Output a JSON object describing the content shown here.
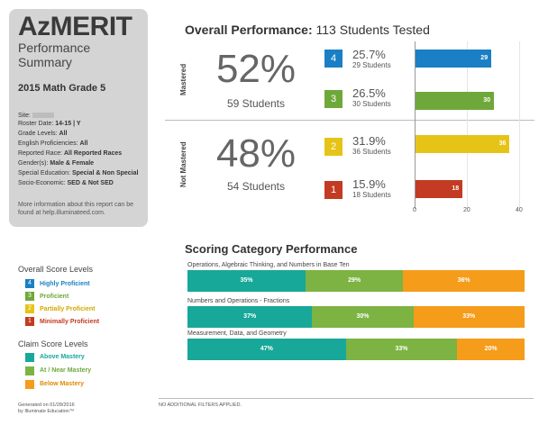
{
  "summary": {
    "brand": "AzMERIT",
    "subtitle": "Performance Summary",
    "grade": "2015 Math Grade 5",
    "filters": [
      {
        "label": "Site:",
        "value": ""
      },
      {
        "label": "Roster Date:",
        "value": "14-15 | Y"
      },
      {
        "label": "Grade Levels:",
        "value": "All"
      },
      {
        "label": "English Proficiencies:",
        "value": "All"
      },
      {
        "label": "Reported Race:",
        "value": "All Reported Races"
      },
      {
        "label": "Gender(s):",
        "value": "Male & Female"
      },
      {
        "label": "Special Education:",
        "value": "Special & Non Special"
      },
      {
        "label": "Socio-Economic:",
        "value": "SED & Not SED"
      }
    ],
    "more_info": "More information about this report can be found at help.illuminateed.com."
  },
  "overall": {
    "title_bold": "Overall Performance:",
    "title_rest": "113 Students Tested",
    "groups": [
      {
        "label": "Mastered",
        "percent": "52%",
        "students": "59 Students"
      },
      {
        "label": "Not Mastered",
        "percent": "48%",
        "students": "54 Students"
      }
    ],
    "levels": [
      {
        "badge": "4",
        "percent": "25.7%",
        "students": "29 Students",
        "count": 29,
        "color": "#1a7fc4"
      },
      {
        "badge": "3",
        "percent": "26.5%",
        "students": "30 Students",
        "count": 30,
        "color": "#6fa83a"
      },
      {
        "badge": "2",
        "percent": "31.9%",
        "students": "36 Students",
        "count": 36,
        "color": "#e6c417"
      },
      {
        "badge": "1",
        "percent": "15.9%",
        "students": "18 Students",
        "count": 18,
        "color": "#c23b22"
      }
    ],
    "axis_ticks": [
      "0",
      "20",
      "40"
    ],
    "axis_max": 40
  },
  "scoring": {
    "title": "Scoring Category Performance",
    "categories": [
      {
        "name": "Operations, Algebraic Thinking, and Numbers in Base Ten",
        "above": 35,
        "near": 29,
        "below": 36,
        "above_label": "35%",
        "near_label": "29%",
        "below_label": "36%"
      },
      {
        "name": "Numbers and Operations - Fractions",
        "above": 37,
        "near": 30,
        "below": 33,
        "above_label": "37%",
        "near_label": "30%",
        "below_label": "33%"
      },
      {
        "name": "Measurement, Data, and Geometry",
        "above": 47,
        "near": 33,
        "below": 20,
        "above_label": "47%",
        "near_label": "33%",
        "below_label": "20%"
      }
    ],
    "colors": {
      "above": "#17a89a",
      "near": "#7cb342",
      "below": "#f59c1a"
    }
  },
  "legend": {
    "overall_title": "Overall Score Levels",
    "overall_items": [
      {
        "badge": "4",
        "label": "Highly Proficient",
        "color": "#1a7fc4"
      },
      {
        "badge": "3",
        "label": "Proficient",
        "color": "#6fa83a"
      },
      {
        "badge": "2",
        "label": "Partially Proficient",
        "color": "#e6c417"
      },
      {
        "badge": "1",
        "label": "Minimally Proficient",
        "color": "#c23b22"
      }
    ],
    "claim_title": "Claim Score Levels",
    "claim_items": [
      {
        "label": "Above Mastery",
        "color": "#17a89a"
      },
      {
        "label": "At / Near Mastery",
        "color": "#7cb342"
      },
      {
        "label": "Below Mastery",
        "color": "#f59c1a"
      }
    ]
  },
  "footer": {
    "generated_line1": "Generated on 01/28/2016",
    "generated_line2": "by Illuminate Education™",
    "filters_note": "NO ADDITIONAL FILTERS APPLIED."
  }
}
